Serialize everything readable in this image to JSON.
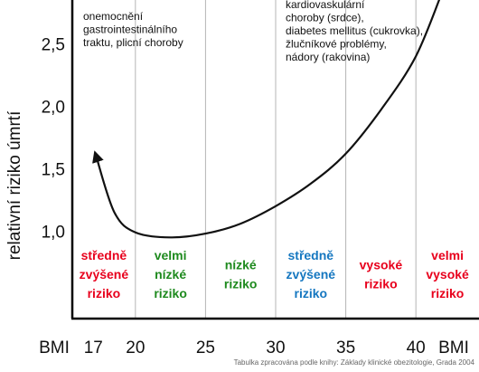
{
  "chart_data": {
    "type": "line",
    "ylabel": "relativní riziko úmrtí",
    "x_axis_title": "BMI",
    "x_ticks": [
      "17",
      "20",
      "25",
      "30",
      "35",
      "40"
    ],
    "x_tick_values": [
      17,
      20,
      25,
      30,
      35,
      40
    ],
    "y_ticks": [
      "1,0",
      "1,5",
      "2,0",
      "2,5"
    ],
    "y_tick_values": [
      1.0,
      1.5,
      2.0,
      2.5
    ],
    "xlim": [
      15.5,
      44.5
    ],
    "ylim": [
      0.3,
      2.85
    ],
    "grid": "vertical",
    "series": [
      {
        "values": [
          {
            "x": 17.2,
            "y": 1.6
          },
          {
            "x": 18.5,
            "y": 1.15
          },
          {
            "x": 20.0,
            "y": 0.99
          },
          {
            "x": 22.5,
            "y": 0.95
          },
          {
            "x": 25.0,
            "y": 0.98
          },
          {
            "x": 27.5,
            "y": 1.06
          },
          {
            "x": 30.0,
            "y": 1.2
          },
          {
            "x": 32.5,
            "y": 1.38
          },
          {
            "x": 35.0,
            "y": 1.62
          },
          {
            "x": 37.5,
            "y": 1.97
          },
          {
            "x": 40.0,
            "y": 2.4
          },
          {
            "x": 42.0,
            "y": 2.95
          }
        ]
      }
    ],
    "zones": [
      {
        "label": "středně zvýšené riziko",
        "lines": [
          "středně",
          "zvýšené",
          "riziko"
        ],
        "color": "#e8001c"
      },
      {
        "label": "velmi nízké riziko",
        "lines": [
          "velmi",
          "nízké",
          "riziko"
        ],
        "color": "#1e8a1e"
      },
      {
        "label": "nízké riziko",
        "lines": [
          "nízké",
          "riziko"
        ],
        "color": "#1e8a1e"
      },
      {
        "label": "středně zvýšené riziko",
        "lines": [
          "středně",
          "zvýšené",
          "riziko"
        ],
        "color": "#1577c0"
      },
      {
        "label": "vysoké riziko",
        "lines": [
          "vysoké",
          "riziko"
        ],
        "color": "#e8001c"
      },
      {
        "label": "velmi vysoké riziko",
        "lines": [
          "velmi",
          "vysoké",
          "riziko"
        ],
        "color": "#e8001c"
      }
    ],
    "annotations": [
      {
        "lines": [
          "onemocnění",
          "gastrointestinálního",
          "traktu, plicní choroby"
        ]
      },
      {
        "lines": [
          "kardiovaskulární",
          "choroby (srdce),",
          "diabetes mellitus (cukrovka),",
          "žlučníkové problémy,",
          "nádory (rakovina)"
        ]
      }
    ],
    "source": "Tabulka zpracována podle knihy: Základy klinické obezitologie, Grada 2004"
  }
}
